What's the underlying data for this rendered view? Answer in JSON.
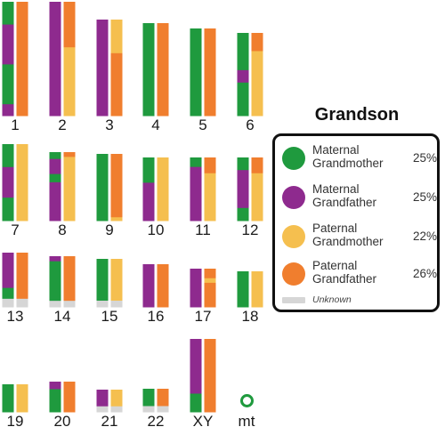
{
  "title": "Grandson",
  "colors": {
    "maternal_grandmother": "#1f9a3e",
    "maternal_grandfather": "#8e2a8e",
    "paternal_grandmother": "#f5bf4f",
    "paternal_grandfather": "#f07e2e",
    "unknown": "#d6d6d6"
  },
  "legend": [
    {
      "label": "Maternal Grandmother",
      "percent": "25%",
      "color_key": "maternal_grandmother"
    },
    {
      "label": "Maternal Grandfather",
      "percent": "25%",
      "color_key": "maternal_grandfather"
    },
    {
      "label": "Paternal Grandmother",
      "percent": "22%",
      "color_key": "paternal_grandmother"
    },
    {
      "label": "Paternal Grandfather",
      "percent": "26%",
      "color_key": "paternal_grandfather"
    }
  ],
  "unknown_label": "Unknown",
  "mt_label": "mt",
  "chromosomes": [
    {
      "label": "1",
      "maternal": [
        [
          "maternal_grandmother",
          0.2
        ],
        [
          "maternal_grandfather",
          0.35
        ],
        [
          "maternal_grandmother",
          0.35
        ],
        [
          "maternal_grandfather",
          0.1
        ]
      ],
      "paternal": [
        [
          "paternal_grandfather",
          1.0
        ]
      ]
    },
    {
      "label": "2",
      "maternal": [
        [
          "maternal_grandfather",
          1.0
        ]
      ],
      "paternal": [
        [
          "paternal_grandfather",
          0.4
        ],
        [
          "paternal_grandmother",
          0.6
        ]
      ]
    },
    {
      "label": "3",
      "maternal": [
        [
          "maternal_grandfather",
          1.0
        ]
      ],
      "paternal": [
        [
          "paternal_grandmother",
          0.35
        ],
        [
          "paternal_grandfather",
          0.65
        ]
      ]
    },
    {
      "label": "4",
      "maternal": [
        [
          "maternal_grandmother",
          1.0
        ]
      ],
      "paternal": [
        [
          "paternal_grandfather",
          1.0
        ]
      ]
    },
    {
      "label": "5",
      "maternal": [
        [
          "maternal_grandmother",
          1.0
        ]
      ],
      "paternal": [
        [
          "paternal_grandfather",
          1.0
        ]
      ]
    },
    {
      "label": "6",
      "maternal": [
        [
          "maternal_grandmother",
          0.45
        ],
        [
          "maternal_grandfather",
          0.15
        ],
        [
          "maternal_grandmother",
          0.4
        ]
      ],
      "paternal": [
        [
          "paternal_grandfather",
          0.22
        ],
        [
          "paternal_grandmother",
          0.78
        ]
      ]
    },
    {
      "label": "7",
      "maternal": [
        [
          "maternal_grandmother",
          0.3
        ],
        [
          "maternal_grandfather",
          0.4
        ],
        [
          "maternal_grandmother",
          0.3
        ]
      ],
      "paternal": [
        [
          "paternal_grandmother",
          1.0
        ]
      ]
    },
    {
      "label": "8",
      "maternal": [
        [
          "maternal_grandmother",
          0.1
        ],
        [
          "maternal_grandfather",
          0.22
        ],
        [
          "maternal_grandmother",
          0.12
        ],
        [
          "maternal_grandfather",
          0.56
        ]
      ],
      "paternal": [
        [
          "paternal_grandfather",
          0.07
        ],
        [
          "paternal_grandmother",
          0.93
        ]
      ]
    },
    {
      "label": "9",
      "maternal": [
        [
          "maternal_grandmother",
          1.0
        ]
      ],
      "paternal": [
        [
          "paternal_grandfather",
          0.95
        ],
        [
          "paternal_grandmother",
          0.05
        ]
      ]
    },
    {
      "label": "10",
      "maternal": [
        [
          "maternal_grandmother",
          0.4
        ],
        [
          "maternal_grandfather",
          0.6
        ]
      ],
      "paternal": [
        [
          "paternal_grandmother",
          1.0
        ]
      ]
    },
    {
      "label": "11",
      "maternal": [
        [
          "maternal_grandmother",
          0.15
        ],
        [
          "maternal_grandfather",
          0.85
        ]
      ],
      "paternal": [
        [
          "paternal_grandfather",
          0.25
        ],
        [
          "paternal_grandmother",
          0.75
        ]
      ]
    },
    {
      "label": "12",
      "maternal": [
        [
          "maternal_grandmother",
          0.2
        ],
        [
          "maternal_grandfather",
          0.6
        ],
        [
          "maternal_grandmother",
          0.2
        ]
      ],
      "paternal": [
        [
          "paternal_grandfather",
          0.25
        ],
        [
          "paternal_grandmother",
          0.75
        ]
      ]
    },
    {
      "label": "13",
      "maternal": [
        [
          "maternal_grandfather",
          0.65
        ],
        [
          "maternal_grandmother",
          0.2
        ],
        [
          "unknown",
          0.15
        ]
      ],
      "paternal": [
        [
          "paternal_grandfather",
          0.85
        ],
        [
          "unknown",
          0.15
        ]
      ]
    },
    {
      "label": "14",
      "maternal": [
        [
          "maternal_grandfather",
          0.1
        ],
        [
          "maternal_grandmother",
          0.78
        ],
        [
          "unknown",
          0.12
        ]
      ],
      "paternal": [
        [
          "paternal_grandfather",
          0.88
        ],
        [
          "unknown",
          0.12
        ]
      ]
    },
    {
      "label": "15",
      "maternal": [
        [
          "maternal_grandmother",
          0.87
        ],
        [
          "unknown",
          0.13
        ]
      ],
      "paternal": [
        [
          "paternal_grandmother",
          0.87
        ],
        [
          "unknown",
          0.13
        ]
      ]
    },
    {
      "label": "16",
      "maternal": [
        [
          "maternal_grandfather",
          1.0
        ]
      ],
      "paternal": [
        [
          "paternal_grandfather",
          1.0
        ]
      ]
    },
    {
      "label": "17",
      "maternal": [
        [
          "maternal_grandfather",
          1.0
        ]
      ],
      "paternal": [
        [
          "paternal_grandfather",
          0.25
        ],
        [
          "paternal_grandmother",
          0.12
        ],
        [
          "paternal_grandfather",
          0.63
        ]
      ]
    },
    {
      "label": "18",
      "maternal": [
        [
          "maternal_grandmother",
          1.0
        ]
      ],
      "paternal": [
        [
          "paternal_grandmother",
          1.0
        ]
      ]
    },
    {
      "label": "19",
      "maternal": [
        [
          "maternal_grandmother",
          1.0
        ]
      ],
      "paternal": [
        [
          "paternal_grandmother",
          1.0
        ]
      ]
    },
    {
      "label": "20",
      "maternal": [
        [
          "maternal_grandfather",
          0.25
        ],
        [
          "maternal_grandmother",
          0.75
        ]
      ],
      "paternal": [
        [
          "paternal_grandfather",
          1.0
        ]
      ]
    },
    {
      "label": "21",
      "maternal": [
        [
          "maternal_grandfather",
          0.75
        ],
        [
          "unknown",
          0.25
        ]
      ],
      "paternal": [
        [
          "paternal_grandmother",
          0.75
        ],
        [
          "unknown",
          0.25
        ]
      ]
    },
    {
      "label": "22",
      "maternal": [
        [
          "maternal_grandmother",
          0.75
        ],
        [
          "unknown",
          0.25
        ]
      ],
      "paternal": [
        [
          "paternal_grandfather",
          0.75
        ],
        [
          "unknown",
          0.25
        ]
      ]
    },
    {
      "label": "XY",
      "maternal": [
        [
          "maternal_grandfather",
          0.75
        ],
        [
          "maternal_grandmother",
          0.25
        ]
      ],
      "paternal": [
        [
          "paternal_grandfather",
          1.0
        ]
      ]
    }
  ]
}
